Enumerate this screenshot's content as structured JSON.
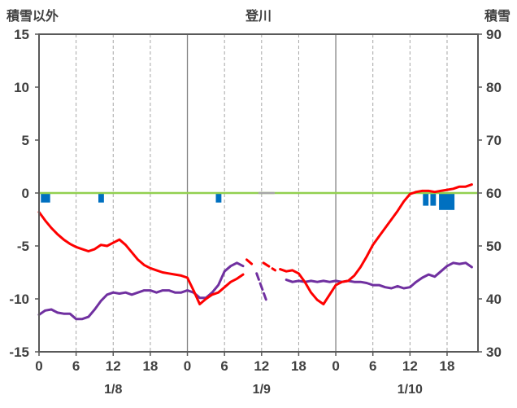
{
  "colors": {
    "red": "#fe0000",
    "purple": "#7030a0",
    "green": "#92d050",
    "blue": "#0070c0",
    "grid": "#a6a6a6",
    "day_grid": "#808080",
    "border": "#595959",
    "text": "#404040",
    "missing": "#a6a6a6"
  },
  "chart_data": {
    "type": "line",
    "title": "登川",
    "left_axis": {
      "label": "積雪以外",
      "min": -15,
      "max": 15,
      "ticks": [
        15,
        10,
        5,
        0,
        -5,
        -10,
        -15
      ],
      "tick_labels": [
        "15",
        "10",
        "5",
        "0",
        "-5",
        "-10",
        "-15"
      ]
    },
    "right_axis": {
      "label": "積雪",
      "min": 30,
      "max": 90,
      "ticks": [
        90,
        80,
        70,
        60,
        50,
        40,
        30
      ],
      "tick_labels": [
        "90",
        "80",
        "70",
        "60",
        "50",
        "40",
        "30"
      ]
    },
    "x_axis": {
      "min": 0,
      "max": 71,
      "tick_hours": [
        0,
        6,
        12,
        18,
        24,
        30,
        36,
        42,
        48,
        54,
        60,
        66
      ],
      "tick_labels": [
        "0",
        "6",
        "12",
        "18",
        "0",
        "6",
        "12",
        "18",
        "0",
        "6",
        "12",
        "18"
      ],
      "grid_dashed_hours": [
        6,
        12,
        18,
        30,
        36,
        42,
        54,
        60,
        66
      ],
      "grid_solid_hours": [
        24,
        48
      ],
      "day_labels": [
        {
          "label": "1/8",
          "hour": 12
        },
        {
          "label": "1/9",
          "hour": 36
        },
        {
          "label": "1/10",
          "hour": 60
        }
      ]
    },
    "bars": {
      "color_key": "blue",
      "items": [
        {
          "x": 0.3,
          "w": 1.5,
          "d": 0.9
        },
        {
          "x": 9.6,
          "w": 0.9,
          "d": 0.9
        },
        {
          "x": 28.6,
          "w": 0.9,
          "d": 0.9
        },
        {
          "x": 62.1,
          "w": 0.9,
          "d": 1.2
        },
        {
          "x": 63.3,
          "w": 0.9,
          "d": 1.2
        },
        {
          "x": 64.7,
          "w": 2.5,
          "d": 1.6
        }
      ]
    },
    "series": [
      {
        "name": "green-zero-line",
        "color_key": "green",
        "width": 2.5,
        "segments": [
          {
            "dashed": false,
            "points": [
              [
                0,
                0
              ],
              [
                71,
                0
              ]
            ]
          }
        ]
      },
      {
        "name": "zero-line-gap-marker",
        "color_key": "missing",
        "width": 2.5,
        "segments": [
          {
            "dashed": false,
            "points": [
              [
                35.6,
                0
              ],
              [
                38,
                0
              ]
            ]
          }
        ]
      },
      {
        "name": "purple-line",
        "color_key": "purple",
        "width": 3,
        "segments": [
          {
            "dashed": false,
            "points": [
              [
                0,
                -11.5
              ],
              [
                1,
                -11.1
              ],
              [
                2,
                -11.0
              ],
              [
                3,
                -11.3
              ],
              [
                4,
                -11.4
              ],
              [
                5,
                -11.4
              ],
              [
                6,
                -11.9
              ],
              [
                7,
                -11.9
              ],
              [
                8,
                -11.7
              ],
              [
                9,
                -11.0
              ],
              [
                10,
                -10.2
              ],
              [
                11,
                -9.6
              ],
              [
                12,
                -9.4
              ],
              [
                13,
                -9.5
              ],
              [
                14,
                -9.4
              ],
              [
                15,
                -9.6
              ],
              [
                16,
                -9.4
              ],
              [
                17,
                -9.2
              ],
              [
                18,
                -9.2
              ],
              [
                19,
                -9.4
              ],
              [
                20,
                -9.2
              ],
              [
                21,
                -9.2
              ],
              [
                22,
                -9.4
              ],
              [
                23,
                -9.4
              ],
              [
                24,
                -9.2
              ],
              [
                25,
                -9.4
              ],
              [
                26,
                -9.9
              ],
              [
                27,
                -9.9
              ],
              [
                28,
                -9.4
              ],
              [
                29,
                -8.7
              ],
              [
                30,
                -7.4
              ],
              [
                31,
                -6.9
              ],
              [
                32,
                -6.6
              ],
              [
                33,
                -6.9
              ]
            ]
          },
          {
            "dashed": true,
            "points": [
              [
                35.2,
                -7.6
              ],
              [
                36.8,
                -10.2
              ]
            ]
          },
          {
            "dashed": false,
            "points": [
              [
                40,
                -8.2
              ],
              [
                41,
                -8.4
              ],
              [
                42,
                -8.3
              ],
              [
                43,
                -8.4
              ],
              [
                44,
                -8.3
              ],
              [
                45,
                -8.4
              ],
              [
                46,
                -8.3
              ],
              [
                47,
                -8.4
              ],
              [
                48,
                -8.3
              ],
              [
                49,
                -8.4
              ],
              [
                50,
                -8.3
              ],
              [
                51,
                -8.4
              ],
              [
                52,
                -8.4
              ],
              [
                53,
                -8.5
              ],
              [
                54,
                -8.7
              ],
              [
                55,
                -8.7
              ],
              [
                56,
                -8.9
              ],
              [
                57,
                -9.0
              ],
              [
                58,
                -8.8
              ],
              [
                59,
                -9.0
              ],
              [
                60,
                -8.9
              ],
              [
                61,
                -8.4
              ],
              [
                62,
                -8.0
              ],
              [
                63,
                -7.7
              ],
              [
                64,
                -7.9
              ],
              [
                65,
                -7.4
              ],
              [
                66,
                -6.9
              ],
              [
                67,
                -6.6
              ],
              [
                68,
                -6.7
              ],
              [
                69,
                -6.6
              ],
              [
                70,
                -7.0
              ]
            ]
          }
        ]
      },
      {
        "name": "red-line",
        "color_key": "red",
        "width": 3,
        "segments": [
          {
            "dashed": false,
            "points": [
              [
                0,
                -1.8
              ],
              [
                1,
                -2.6
              ],
              [
                2,
                -3.3
              ],
              [
                3,
                -3.9
              ],
              [
                4,
                -4.4
              ],
              [
                5,
                -4.8
              ],
              [
                6,
                -5.1
              ],
              [
                7,
                -5.3
              ],
              [
                8,
                -5.5
              ],
              [
                9,
                -5.3
              ],
              [
                10,
                -4.9
              ],
              [
                11,
                -5.0
              ],
              [
                12,
                -4.7
              ],
              [
                13,
                -4.4
              ],
              [
                14,
                -4.9
              ],
              [
                15,
                -5.6
              ],
              [
                16,
                -6.3
              ],
              [
                17,
                -6.8
              ],
              [
                18,
                -7.1
              ],
              [
                19,
                -7.3
              ],
              [
                20,
                -7.5
              ],
              [
                21,
                -7.6
              ],
              [
                22,
                -7.7
              ],
              [
                23,
                -7.8
              ],
              [
                24,
                -8.0
              ],
              [
                25,
                -9.2
              ],
              [
                26,
                -10.5
              ],
              [
                27,
                -10.0
              ],
              [
                28,
                -9.6
              ],
              [
                29,
                -9.4
              ],
              [
                30,
                -8.9
              ],
              [
                31,
                -8.4
              ],
              [
                32,
                -8.1
              ],
              [
                33,
                -7.7
              ]
            ]
          },
          {
            "dashed": true,
            "points": [
              [
                33.6,
                -6.3
              ],
              [
                34.6,
                -6.8
              ]
            ]
          },
          {
            "dashed": true,
            "points": [
              [
                36.3,
                -6.6
              ],
              [
                38.2,
                -7.3
              ]
            ]
          },
          {
            "dashed": false,
            "points": [
              [
                39,
                -7.2
              ],
              [
                40,
                -7.4
              ],
              [
                41,
                -7.3
              ],
              [
                42,
                -7.6
              ],
              [
                43,
                -8.4
              ],
              [
                44,
                -9.4
              ],
              [
                45,
                -10.1
              ],
              [
                46,
                -10.5
              ],
              [
                47,
                -9.6
              ],
              [
                48,
                -8.7
              ],
              [
                49,
                -8.4
              ],
              [
                50,
                -8.3
              ],
              [
                51,
                -7.8
              ],
              [
                52,
                -7.0
              ],
              [
                53,
                -6.0
              ],
              [
                54,
                -4.9
              ],
              [
                55,
                -4.1
              ],
              [
                56,
                -3.3
              ],
              [
                57,
                -2.5
              ],
              [
                58,
                -1.7
              ],
              [
                59,
                -0.8
              ],
              [
                60,
                -0.1
              ],
              [
                61,
                0.1
              ],
              [
                62,
                0.2
              ],
              [
                63,
                0.2
              ],
              [
                64,
                0.1
              ],
              [
                65,
                0.2
              ],
              [
                66,
                0.3
              ],
              [
                67,
                0.4
              ],
              [
                68,
                0.6
              ],
              [
                69,
                0.6
              ],
              [
                70,
                0.8
              ]
            ]
          }
        ]
      }
    ]
  }
}
